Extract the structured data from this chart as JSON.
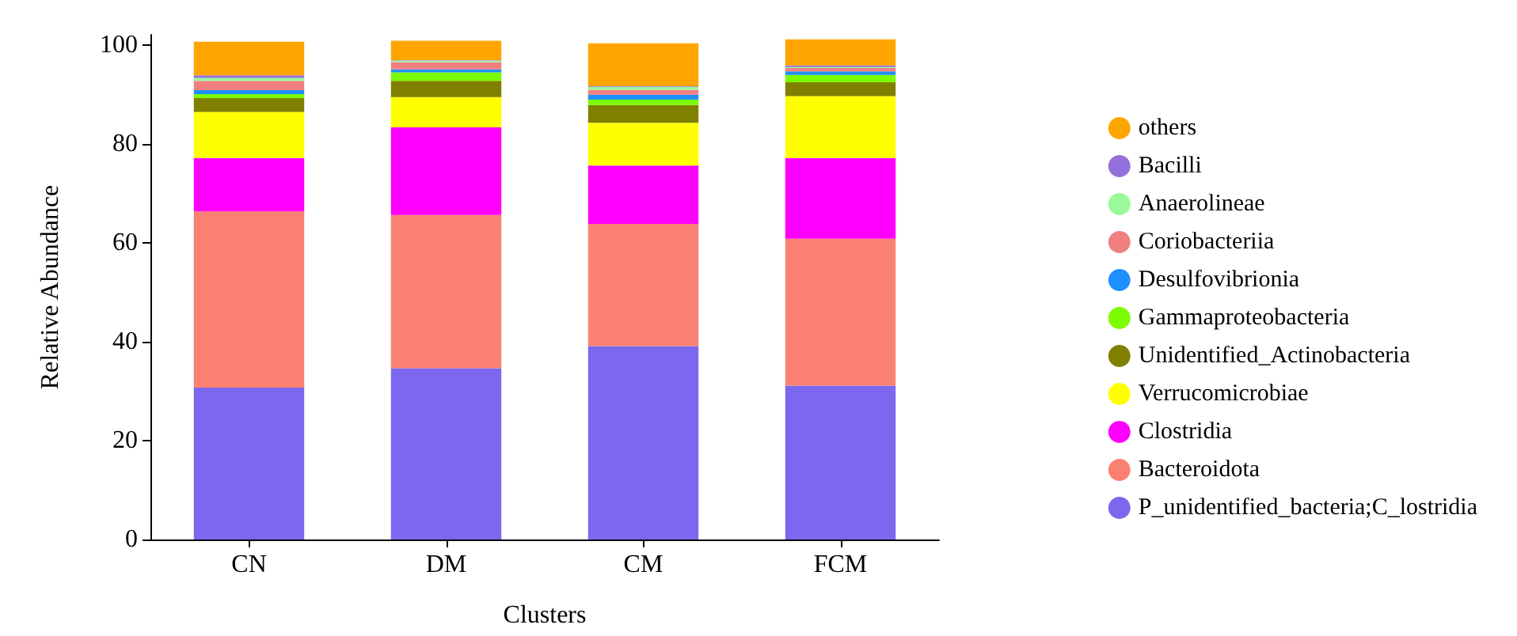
{
  "chart_data": {
    "type": "bar",
    "stacked": true,
    "xlabel": "Clusters",
    "ylabel": "Relative Abundance",
    "categories": [
      "CN",
      "DM",
      "CM",
      "FCM"
    ],
    "ylim": [
      0,
      102
    ],
    "yticks": [
      0,
      20,
      40,
      60,
      80,
      100
    ],
    "grid": false,
    "legend": "right",
    "marker": "circle",
    "series": [
      {
        "name": "P_unidentified_bacteria;C_lostridia",
        "color": "#7b68ee",
        "values": [
          30.7,
          34.6,
          39.1,
          31.1
        ]
      },
      {
        "name": "Bacteroidota",
        "color": "#fa8072",
        "values": [
          35.6,
          31.0,
          24.7,
          29.7
        ]
      },
      {
        "name": "Clostridia",
        "color": "#ff00ff",
        "values": [
          10.8,
          17.7,
          11.8,
          16.3
        ]
      },
      {
        "name": "Verrucomicrobiae",
        "color": "#ffff00",
        "values": [
          9.3,
          6.1,
          8.6,
          12.5
        ]
      },
      {
        "name": "Unidentified_Actinobacteria",
        "color": "#808000",
        "values": [
          2.8,
          3.3,
          3.6,
          2.8
        ]
      },
      {
        "name": "Gammaproteobacteria",
        "color": "#7cfc00",
        "values": [
          0.8,
          1.7,
          1.1,
          1.5
        ]
      },
      {
        "name": "Desulfovibrionia",
        "color": "#1e90ff",
        "values": [
          0.8,
          0.6,
          1.0,
          0.7
        ]
      },
      {
        "name": "Coriobacteriia",
        "color": "#f08080",
        "values": [
          1.9,
          1.5,
          1.0,
          0.7
        ]
      },
      {
        "name": "Anaerolineae",
        "color": "#98fb98",
        "values": [
          0.6,
          0.3,
          0.6,
          0.2
        ]
      },
      {
        "name": "Bacilli",
        "color": "#9370db",
        "values": [
          0.5,
          0.1,
          0.1,
          0.3
        ]
      },
      {
        "name": "others",
        "color": "#ffa500",
        "values": [
          6.8,
          3.9,
          8.7,
          5.3
        ]
      }
    ]
  }
}
